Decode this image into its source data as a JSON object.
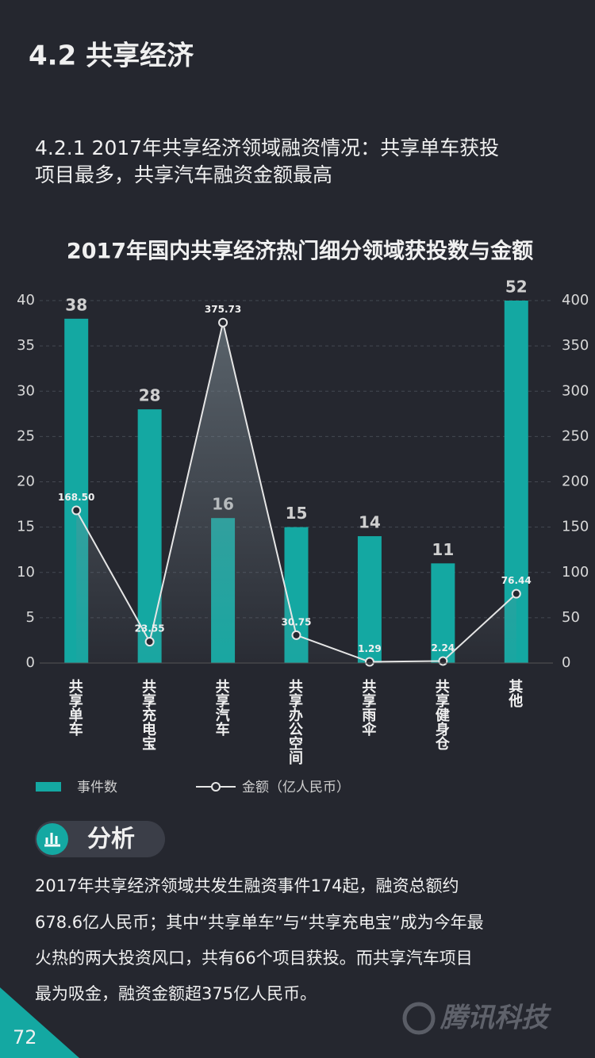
{
  "header": {
    "section": "4.2 共享经济",
    "subtitle_lines": [
      "4.2.1 2017年共享经济领域融资情况：共享单车获投",
      "项目最多，共享汽车融资金额最高"
    ]
  },
  "chart_data": {
    "type": "bar_line",
    "title": "2017年国内共享经济热门细分领域获投数与金额",
    "categories": [
      "共享单车",
      "共享充电宝",
      "共享汽车",
      "共享办公空间",
      "共享雨伞",
      "共享健身仓",
      "其他"
    ],
    "series": [
      {
        "name": "事件数",
        "type": "bar",
        "color": "#14a8a2",
        "values": [
          38,
          28,
          16,
          15,
          14,
          11,
          52
        ]
      },
      {
        "name": "金额（亿人民币）",
        "type": "line",
        "axis": "y2",
        "color": "#e6e6e6",
        "values": [
          168.5,
          23.55,
          375.73,
          30.75,
          1.29,
          2.24,
          76.44
        ],
        "value_labels": [
          "168.50",
          "23.55",
          "375.73",
          "30.75",
          "1.29",
          "2.24",
          "76.44"
        ]
      }
    ],
    "ylim": [
      0,
      40
    ],
    "yticks": [
      0,
      5,
      10,
      15,
      20,
      25,
      30,
      35,
      40
    ],
    "y2lim": [
      0,
      400
    ],
    "y2ticks": [
      0,
      50,
      100,
      150,
      200,
      250,
      300,
      350,
      400
    ],
    "grid": true
  },
  "analysis": {
    "badge": "分析",
    "lines": [
      "2017年共享经济领域共发生融资事件174起，融资总额约",
      "678.6亿人民币；其中“共享单车”与“共享充电宝”成为今年最",
      "火热的两大投资风口，共有66个项目获投。而共享汽车项目",
      "最为吸金，融资金额超375亿人民币。"
    ]
  },
  "footer": {
    "page": "72",
    "logo": "腾讯科技"
  }
}
